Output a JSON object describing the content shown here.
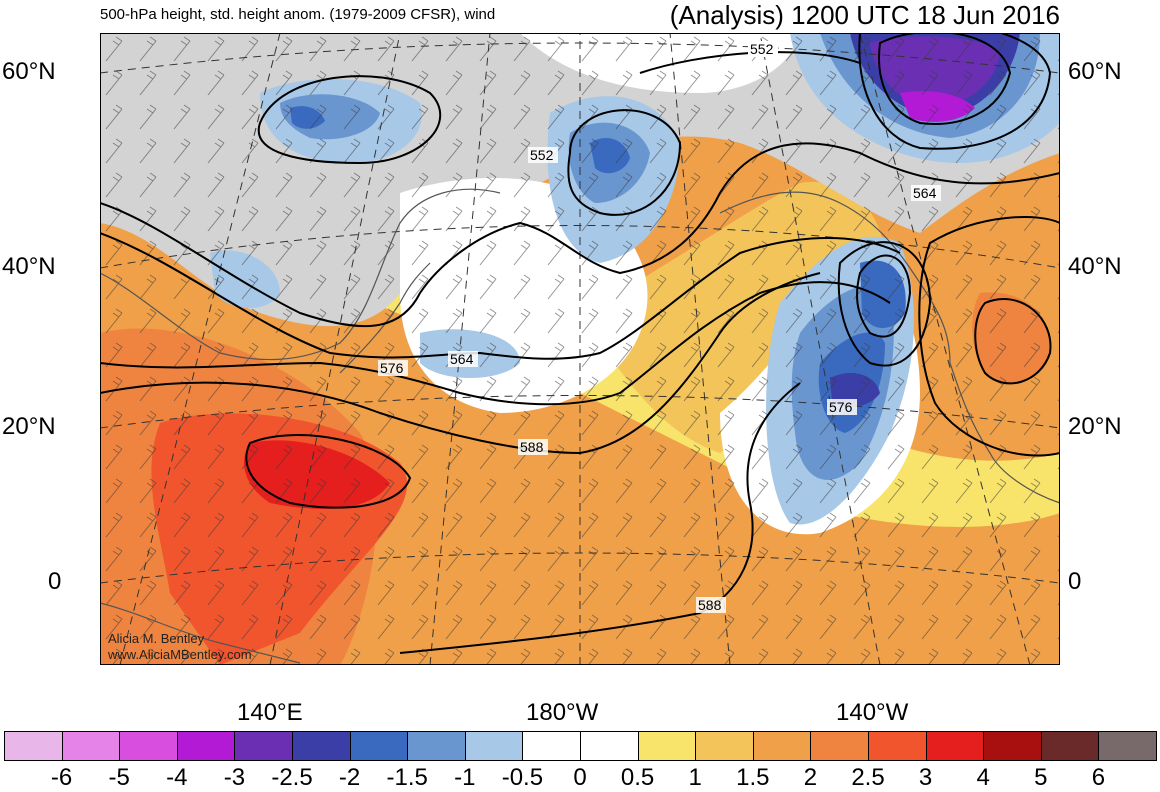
{
  "header": {
    "subtitle": "500-hPa height, std. height anom. (1979-2009 CFSR), wind",
    "title": "(Analysis) 1200 UTC 18 Jun 2016"
  },
  "axes": {
    "lat_left": [
      "60°N",
      "40°N",
      "20°N",
      "0"
    ],
    "lat_right": [
      "60°N",
      "40°N",
      "20°N",
      "0"
    ],
    "lon": [
      "140°E",
      "180°W",
      "140°W"
    ]
  },
  "contour_labels": [
    "552",
    "552",
    "564",
    "564",
    "576",
    "576",
    "588",
    "588"
  ],
  "credit": {
    "line1": "Alicia M. Bentley",
    "line2": "www.AliciaMBentley.com"
  },
  "colorbar": {
    "colors": [
      "#e8b6e8",
      "#e583e8",
      "#d84fe0",
      "#b31ad6",
      "#6a2fb3",
      "#3c3ea8",
      "#3a6ac0",
      "#6a96d0",
      "#a8c8e8",
      "#ffffff",
      "#ffffff",
      "#f8e46a",
      "#f3c45a",
      "#f0a048",
      "#ef8440",
      "#f0552e",
      "#e51e1e",
      "#a81010",
      "#6a2a2a",
      "#786a6a"
    ],
    "labels": [
      "-6",
      "-5",
      "-4",
      "-3",
      "-2.5",
      "-2",
      "-1.5",
      "-1",
      "-0.5",
      "0",
      "0.5",
      "1",
      "1.5",
      "2",
      "2.5",
      "3",
      "4",
      "5",
      "6"
    ]
  },
  "map_colors": {
    "ocean_base": "#f0a048",
    "warm_core": "#ef8440",
    "hot_core": "#f0552e",
    "very_hot": "#e51e1e",
    "yellow_band": "#f8e46a",
    "light_orange": "#f3c45a",
    "land_gray": "#d3d3d3",
    "neutral": "#ffffff",
    "blue_light": "#a8c8e8",
    "blue_mid": "#6a96d0",
    "blue_dark": "#3a6ac0",
    "indigo": "#3c3ea8",
    "purple": "#6a2fb3",
    "magenta": "#b31ad6"
  }
}
